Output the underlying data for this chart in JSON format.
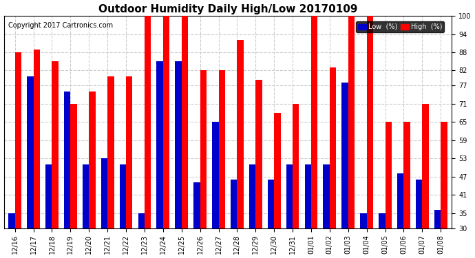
{
  "title": "Outdoor Humidity Daily High/Low 20170109",
  "copyright": "Copyright 2017 Cartronics.com",
  "categories": [
    "12/16",
    "12/17",
    "12/18",
    "12/19",
    "12/20",
    "12/21",
    "12/22",
    "12/23",
    "12/24",
    "12/25",
    "12/26",
    "12/27",
    "12/28",
    "12/29",
    "12/30",
    "12/31",
    "01/01",
    "01/02",
    "01/03",
    "01/04",
    "01/05",
    "01/06",
    "01/07",
    "01/08"
  ],
  "high": [
    88,
    89,
    85,
    71,
    75,
    80,
    80,
    100,
    100,
    100,
    82,
    82,
    92,
    79,
    68,
    71,
    100,
    83,
    100,
    100,
    65,
    65,
    71,
    65
  ],
  "low": [
    35,
    80,
    51,
    75,
    51,
    53,
    51,
    35,
    85,
    85,
    45,
    65,
    46,
    51,
    46,
    51,
    51,
    51,
    78,
    35,
    35,
    48,
    46,
    36
  ],
  "high_color": "#ff0000",
  "low_color": "#0000cc",
  "bg_color": "#ffffff",
  "plot_bg_color": "#ffffff",
  "grid_color": "#cccccc",
  "ylim_min": 30,
  "ylim_max": 100,
  "yticks": [
    30,
    35,
    41,
    47,
    53,
    59,
    65,
    71,
    77,
    82,
    88,
    94,
    100
  ],
  "legend_low_label": "Low  (%)",
  "legend_high_label": "High  (%)"
}
